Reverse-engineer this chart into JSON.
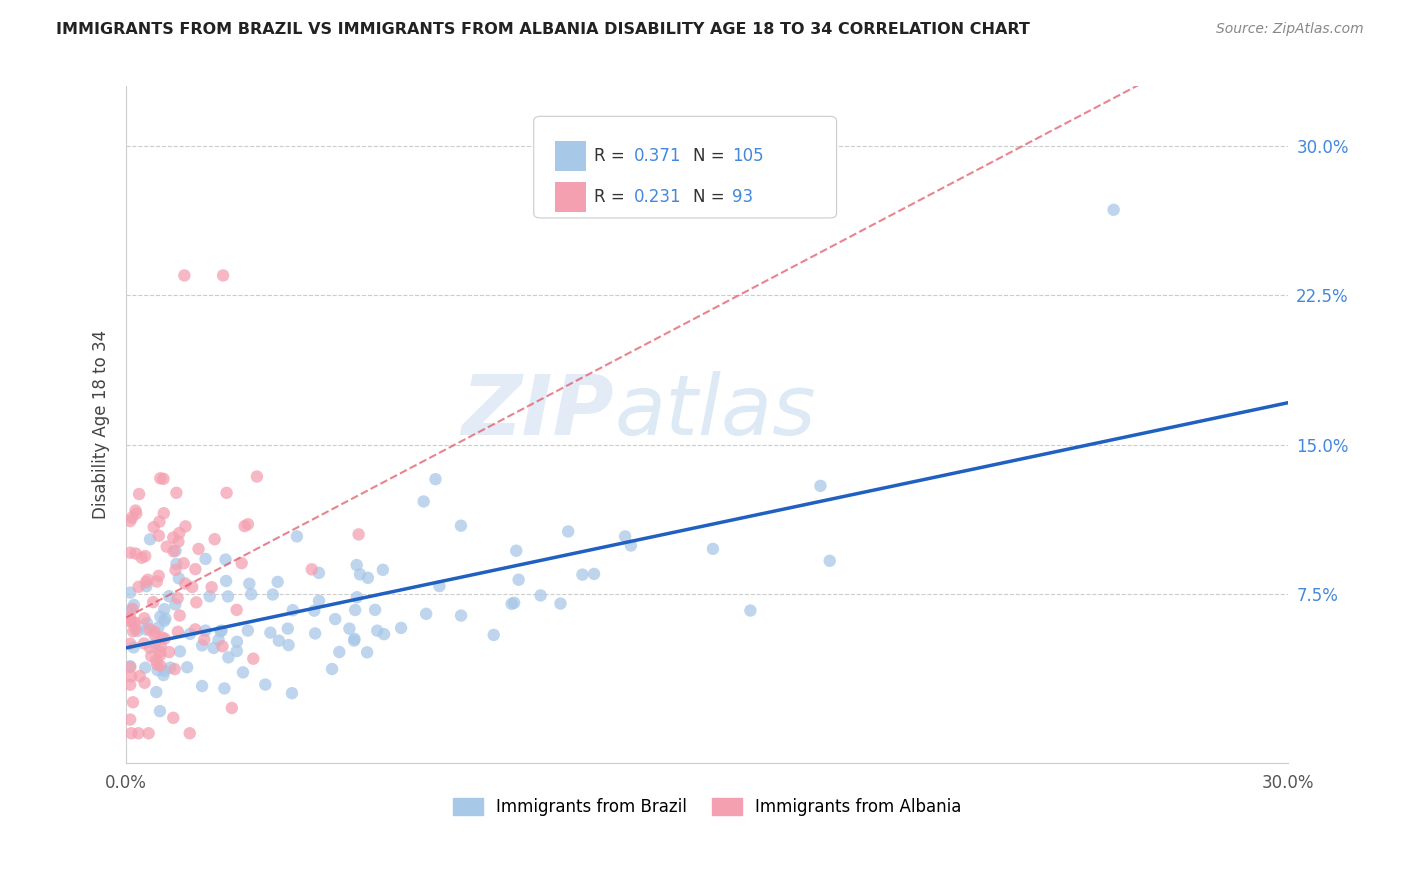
{
  "title": "IMMIGRANTS FROM BRAZIL VS IMMIGRANTS FROM ALBANIA DISABILITY AGE 18 TO 34 CORRELATION CHART",
  "source": "Source: ZipAtlas.com",
  "ylabel": "Disability Age 18 to 34",
  "legend_brazil": "Immigrants from Brazil",
  "legend_albania": "Immigrants from Albania",
  "brazil_R": 0.371,
  "brazil_N": 105,
  "albania_R": 0.231,
  "albania_N": 93,
  "brazil_color": "#a8c8e8",
  "albania_color": "#f4a0b0",
  "brazil_trend_color": "#2060c0",
  "albania_trend_color": "#e05060",
  "xlim": [
    0.0,
    0.3
  ],
  "ylim": [
    -0.01,
    0.33
  ],
  "ytick_labels": [
    "7.5%",
    "15.0%",
    "22.5%",
    "30.0%"
  ],
  "ytick_values": [
    0.075,
    0.15,
    0.225,
    0.3
  ],
  "watermark_zip": "ZIP",
  "watermark_atlas": "atlas",
  "background_color": "#ffffff",
  "grid_color": "#cccccc",
  "blue_text": "#4488dd",
  "dark_text": "#333333",
  "gray_text": "#888888"
}
